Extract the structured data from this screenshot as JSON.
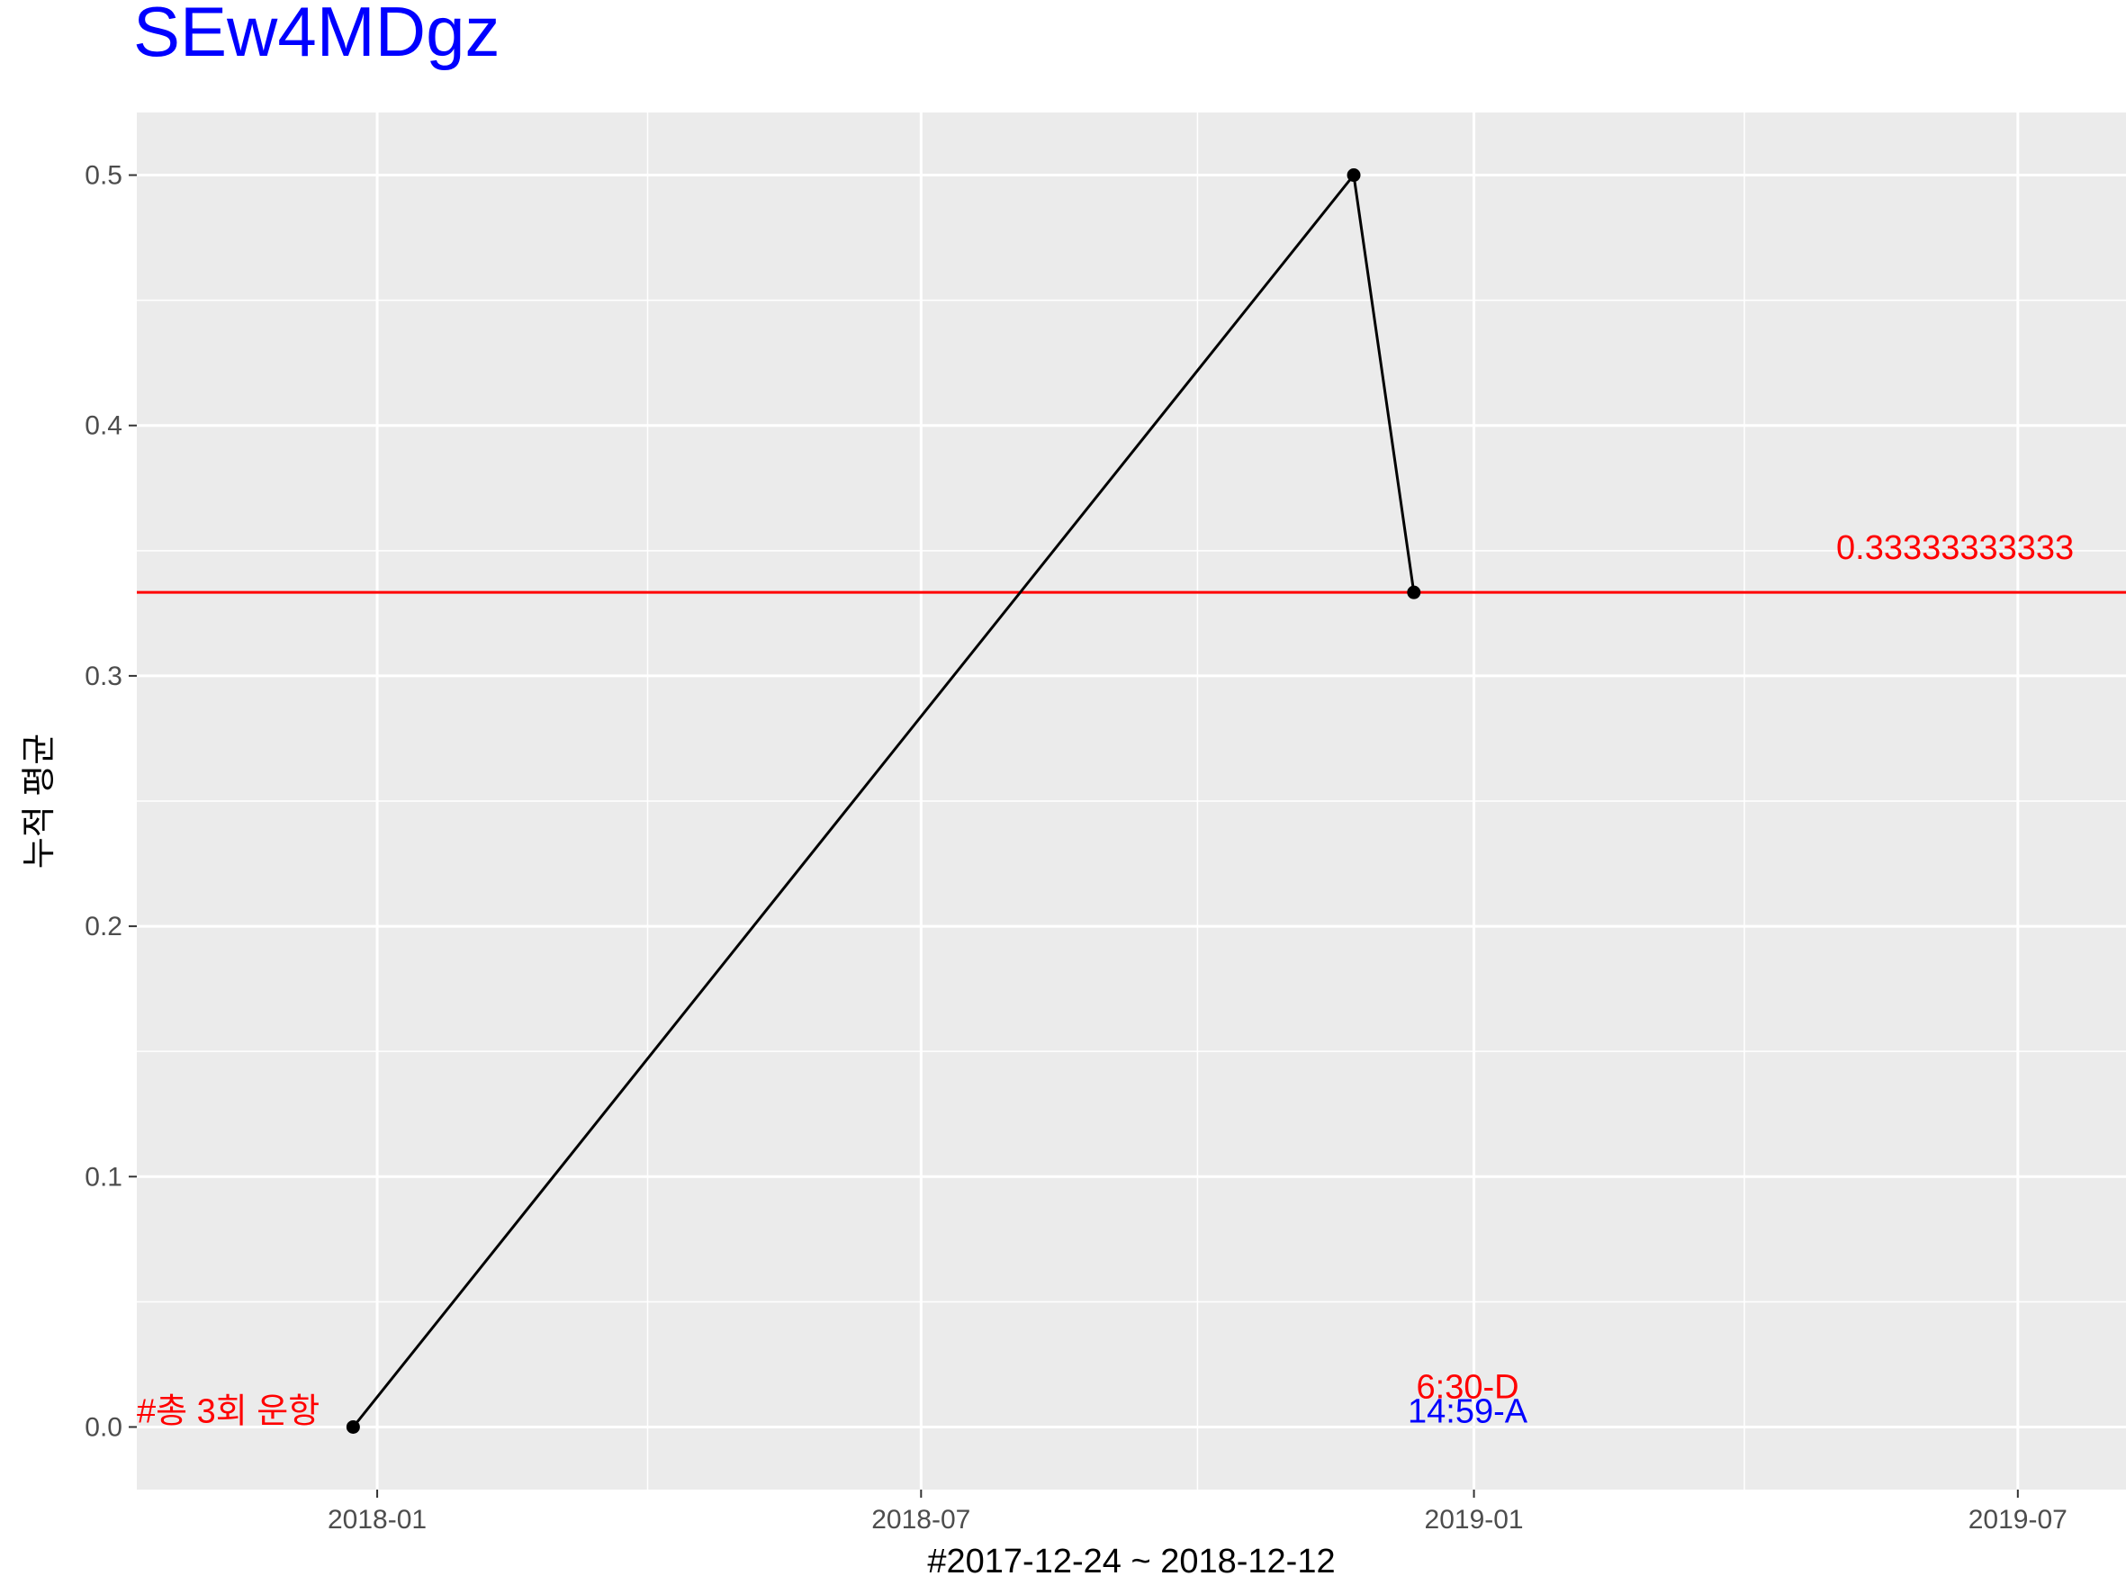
{
  "chart_data": {
    "type": "line",
    "title": "SEw4MDgz",
    "xlabel": "#2017-12-24 ~ 2018-12-12",
    "ylabel": "누적 평균",
    "x_type": "date",
    "xlim": [
      "2017-10-13",
      "2019-08-06"
    ],
    "ylim": [
      -0.025,
      0.525
    ],
    "x_ticks": [
      "2018-01-01",
      "2018-07-01",
      "2019-01-01",
      "2019-07-01"
    ],
    "x_tick_labels": [
      "2018-01",
      "2018-07",
      "2019-01",
      "2019-07"
    ],
    "y_ticks": [
      0.0,
      0.1,
      0.2,
      0.3,
      0.4,
      0.5
    ],
    "y_tick_labels": [
      "0.0",
      "0.1",
      "0.2",
      "0.3",
      "0.4",
      "0.5"
    ],
    "grid": true,
    "series": [
      {
        "x": [
          "2017-12-24",
          "2018-11-22",
          "2018-12-12"
        ],
        "y": [
          0.0,
          0.5,
          0.3333333333
        ]
      }
    ],
    "hline": {
      "y": 0.3333333333,
      "label": "0.33333333333",
      "color": "#ff0000"
    },
    "annotations": [
      {
        "text": "#총 3회 운항",
        "x": "2017-10-13",
        "y": 0.0,
        "color": "#ff0000"
      },
      {
        "text": "6:30-D",
        "x": "2019-01-01",
        "y": 0.0,
        "color": "#ff0000"
      },
      {
        "text": "14:59-A",
        "x": "2019-01-01",
        "y": 0.0,
        "color": "#0000ff"
      }
    ],
    "colors": {
      "title": "#0000ff",
      "panel": "#ebebeb",
      "grid": "#ffffff",
      "line": "#000000"
    }
  }
}
